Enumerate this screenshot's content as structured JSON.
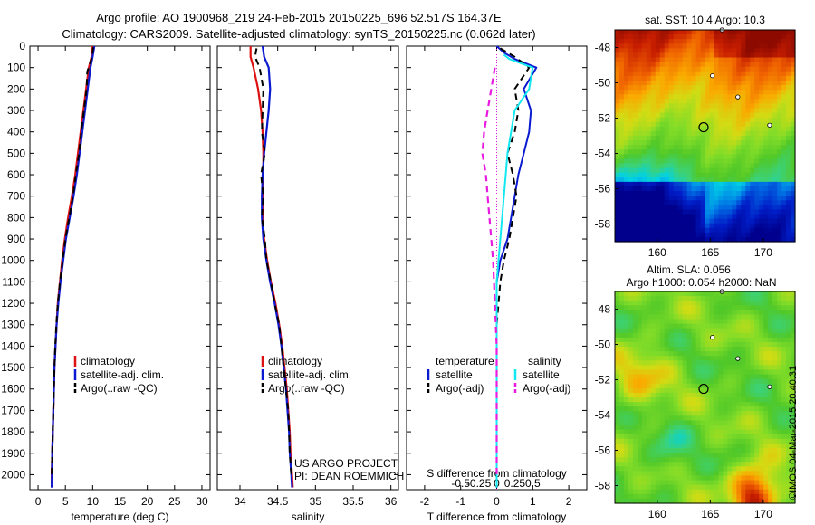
{
  "titles": {
    "line1": "Argo profile: AO 1900968_219 24-Feb-2015 20150225_696 52.517S 164.37E",
    "line2": "Climatology: CARS2009. Satellite-adjusted climatology: synTS_20150225.nc (0.062d later)"
  },
  "footer_note": {
    "line1": "US ARGO PROJECT",
    "line2": "PI: DEAN ROEMMICH"
  },
  "timestamp": "©IMOS 04-Mar-2015 20:40:31",
  "colors": {
    "climatology": "#dd1111",
    "satellite": "#0a1ad0",
    "argo": "#000000",
    "sal_satellite": "#12e8f0",
    "sal_argo": "#e81ce0"
  },
  "chart_data": [
    {
      "type": "line",
      "xlabel": "temperature (deg C)",
      "ylabel": "",
      "xlim": [
        -1.5,
        31.5
      ],
      "ylim": [
        2070,
        0
      ],
      "xticks": [
        0,
        5,
        10,
        15,
        20,
        25,
        30
      ],
      "yticks": [
        0,
        100,
        200,
        300,
        400,
        500,
        600,
        700,
        800,
        900,
        1000,
        1100,
        1200,
        1300,
        1400,
        1500,
        1600,
        1700,
        1800,
        1900,
        2000
      ],
      "legend": [
        "climatology",
        "satellite-adj. clim.",
        "Argo(..raw -QC)"
      ],
      "series": [
        {
          "name": "climatology",
          "x": [
            10.0,
            9.8,
            9.3,
            8.8,
            8.3,
            7.8,
            7.3,
            6.8,
            6.2,
            5.5,
            4.9,
            4.4,
            4.0,
            3.6,
            3.4,
            3.2,
            3.0,
            2.9,
            2.8,
            2.7,
            2.6,
            2.5,
            2.5
          ],
          "y": [
            0,
            50,
            100,
            200,
            300,
            400,
            500,
            600,
            700,
            800,
            900,
            1000,
            1100,
            1200,
            1300,
            1400,
            1500,
            1600,
            1700,
            1800,
            1900,
            2000,
            2060
          ]
        },
        {
          "name": "satellite-adj. clim.",
          "x": [
            10.3,
            10.0,
            9.6,
            9.1,
            8.6,
            8.1,
            7.6,
            7.1,
            6.5,
            5.8,
            5.1,
            4.6,
            4.1,
            3.7,
            3.4,
            3.2,
            3.0,
            2.9,
            2.8,
            2.7,
            2.6,
            2.55,
            2.5
          ],
          "y": [
            0,
            50,
            100,
            200,
            300,
            400,
            500,
            600,
            700,
            800,
            900,
            1000,
            1100,
            1200,
            1300,
            1400,
            1500,
            1600,
            1700,
            1800,
            1900,
            2000,
            2060
          ]
        },
        {
          "name": "Argo(..raw -QC)",
          "x": [
            10.1,
            9.9,
            9.0,
            8.9,
            8.4,
            7.9,
            7.5,
            6.9,
            6.4,
            5.7,
            5.0,
            4.5,
            4.0,
            3.6,
            3.35,
            3.15,
            3.0,
            2.9,
            2.8,
            2.7,
            2.6,
            2.5
          ],
          "y": [
            5,
            50,
            120,
            200,
            300,
            400,
            500,
            600,
            700,
            800,
            900,
            1000,
            1100,
            1200,
            1300,
            1400,
            1500,
            1600,
            1700,
            1800,
            1900,
            2000
          ]
        }
      ]
    },
    {
      "type": "line",
      "xlabel": "salinity",
      "ylabel": "",
      "xlim": [
        33.7,
        36.1
      ],
      "ylim": [
        2070,
        0
      ],
      "xticks": [
        34,
        34.5,
        35,
        35.5,
        36
      ],
      "xticklabels": [
        "34",
        "34.5",
        "35",
        "35.5",
        "36"
      ],
      "legend": [
        "climatology",
        "satellite-adj. clim.",
        "Argo(..raw -QC)"
      ],
      "series": [
        {
          "name": "climatology",
          "x": [
            34.14,
            34.14,
            34.18,
            34.24,
            34.28,
            34.3,
            34.31,
            34.31,
            34.3,
            34.3,
            34.32,
            34.36,
            34.41,
            34.47,
            34.52,
            34.56,
            34.59,
            34.62,
            34.64,
            34.66,
            34.67,
            34.69,
            34.7
          ],
          "y": [
            0,
            50,
            100,
            200,
            300,
            400,
            500,
            600,
            700,
            800,
            900,
            1000,
            1100,
            1200,
            1300,
            1400,
            1500,
            1600,
            1700,
            1800,
            1900,
            2000,
            2060
          ]
        },
        {
          "name": "satellite-adj. clim.",
          "x": [
            34.3,
            34.32,
            34.38,
            34.4,
            34.38,
            34.35,
            34.32,
            34.3,
            34.29,
            34.29,
            34.31,
            34.35,
            34.4,
            34.46,
            34.51,
            34.55,
            34.58,
            34.61,
            34.63,
            34.65,
            34.66,
            34.68,
            34.69
          ],
          "y": [
            0,
            50,
            100,
            200,
            300,
            400,
            500,
            600,
            700,
            800,
            900,
            1000,
            1100,
            1200,
            1300,
            1400,
            1500,
            1600,
            1700,
            1800,
            1900,
            2000,
            2060
          ]
        },
        {
          "name": "Argo(..raw -QC)",
          "x": [
            34.22,
            34.2,
            34.26,
            34.31,
            34.3,
            34.29,
            34.33,
            34.28,
            34.31,
            34.29,
            34.33,
            34.35,
            34.41,
            34.46,
            34.52,
            34.55,
            34.58,
            34.61,
            34.64,
            34.65,
            34.66,
            34.68
          ],
          "y": [
            10,
            50,
            100,
            200,
            300,
            400,
            500,
            600,
            700,
            800,
            900,
            1000,
            1100,
            1200,
            1300,
            1400,
            1500,
            1600,
            1700,
            1800,
            1900,
            2000
          ]
        }
      ]
    },
    {
      "type": "line",
      "xlabel": "T difference from climatology",
      "xlabel_top": "S difference from climatology",
      "ylabel": "",
      "xlim": [
        -2.5,
        2.5
      ],
      "ylim": [
        2070,
        0
      ],
      "xticks": [
        -2,
        -1,
        0,
        1,
        2
      ],
      "top_xticklabels": [
        "-0.5",
        "-0.25",
        "0",
        "0.25",
        "0.5"
      ],
      "legend": [
        "temperature",
        "satellite",
        "Argo(-adj)",
        "salinity",
        "satellite",
        "Argo(-adj)"
      ],
      "series": [
        {
          "name": "temperature satellite",
          "x": [
            0.0,
            0.2,
            0.5,
            1.1,
            0.75,
            0.95,
            0.9,
            0.75,
            0.6,
            0.5,
            0.4,
            0.3,
            0.1,
            0.0,
            0.0,
            0.0,
            0.0,
            0.0,
            0.0,
            0.0,
            0.0,
            0.0
          ],
          "y": [
            0,
            30,
            60,
            100,
            200,
            300,
            400,
            500,
            600,
            700,
            800,
            900,
            1000,
            1100,
            1200,
            1300,
            1400,
            1500,
            1600,
            1700,
            1800,
            2060
          ]
        },
        {
          "name": "temperature Argo(-adj)",
          "x": [
            0.1,
            0.5,
            0.9,
            0.5,
            0.6,
            0.5,
            0.3,
            0.45,
            0.55,
            0.45,
            0.35,
            0.2,
            0.1,
            0.05,
            0.0,
            0.0,
            0.0,
            0.0,
            0.0
          ],
          "y": [
            10,
            50,
            100,
            200,
            300,
            400,
            500,
            600,
            700,
            800,
            900,
            1000,
            1100,
            1200,
            1300,
            1400,
            1500,
            1700,
            2000
          ]
        },
        {
          "name": "salinity satellite",
          "x": [
            0.2,
            0.35,
            1.0,
            0.9,
            0.5,
            0.4,
            0.3,
            0.25,
            0.2,
            0.15,
            0.1,
            0.05,
            0.0,
            0.0,
            0.0,
            0.0
          ],
          "y": [
            40,
            60,
            100,
            200,
            300,
            400,
            500,
            600,
            700,
            800,
            900,
            1000,
            1100,
            1200,
            1500,
            2060
          ]
        },
        {
          "name": "salinity Argo(-adj)",
          "x": [
            -0.05,
            -0.15,
            -0.25,
            -0.35,
            -0.4,
            -0.3,
            -0.25,
            -0.2,
            -0.15,
            -0.1,
            -0.05,
            0.0,
            0.0,
            0.0,
            0.0
          ],
          "y": [
            100,
            200,
            300,
            400,
            500,
            600,
            700,
            800,
            900,
            1000,
            1200,
            1400,
            1600,
            1800,
            2000
          ]
        }
      ]
    },
    {
      "type": "heatmap",
      "title": "sat. SST: 10.4 Argo: 10.3",
      "xlim": [
        156,
        173
      ],
      "ylim": [
        -59,
        -47
      ],
      "xticks": [
        160,
        165,
        170
      ],
      "yticks": [
        -48,
        -50,
        -52,
        -54,
        -56,
        -58
      ],
      "marker": {
        "lon": 164.37,
        "lat": -52.517
      }
    },
    {
      "type": "heatmap",
      "title": "Altim. SLA: 0.056",
      "subtitle": "Argo h1000: 0.054 h2000: NaN",
      "xlim": [
        156,
        173
      ],
      "ylim": [
        -59,
        -47
      ],
      "xticks": [
        160,
        165,
        170
      ],
      "yticks": [
        -48,
        -50,
        -52,
        -54,
        -56,
        -58
      ],
      "marker": {
        "lon": 164.37,
        "lat": -52.517
      }
    }
  ]
}
